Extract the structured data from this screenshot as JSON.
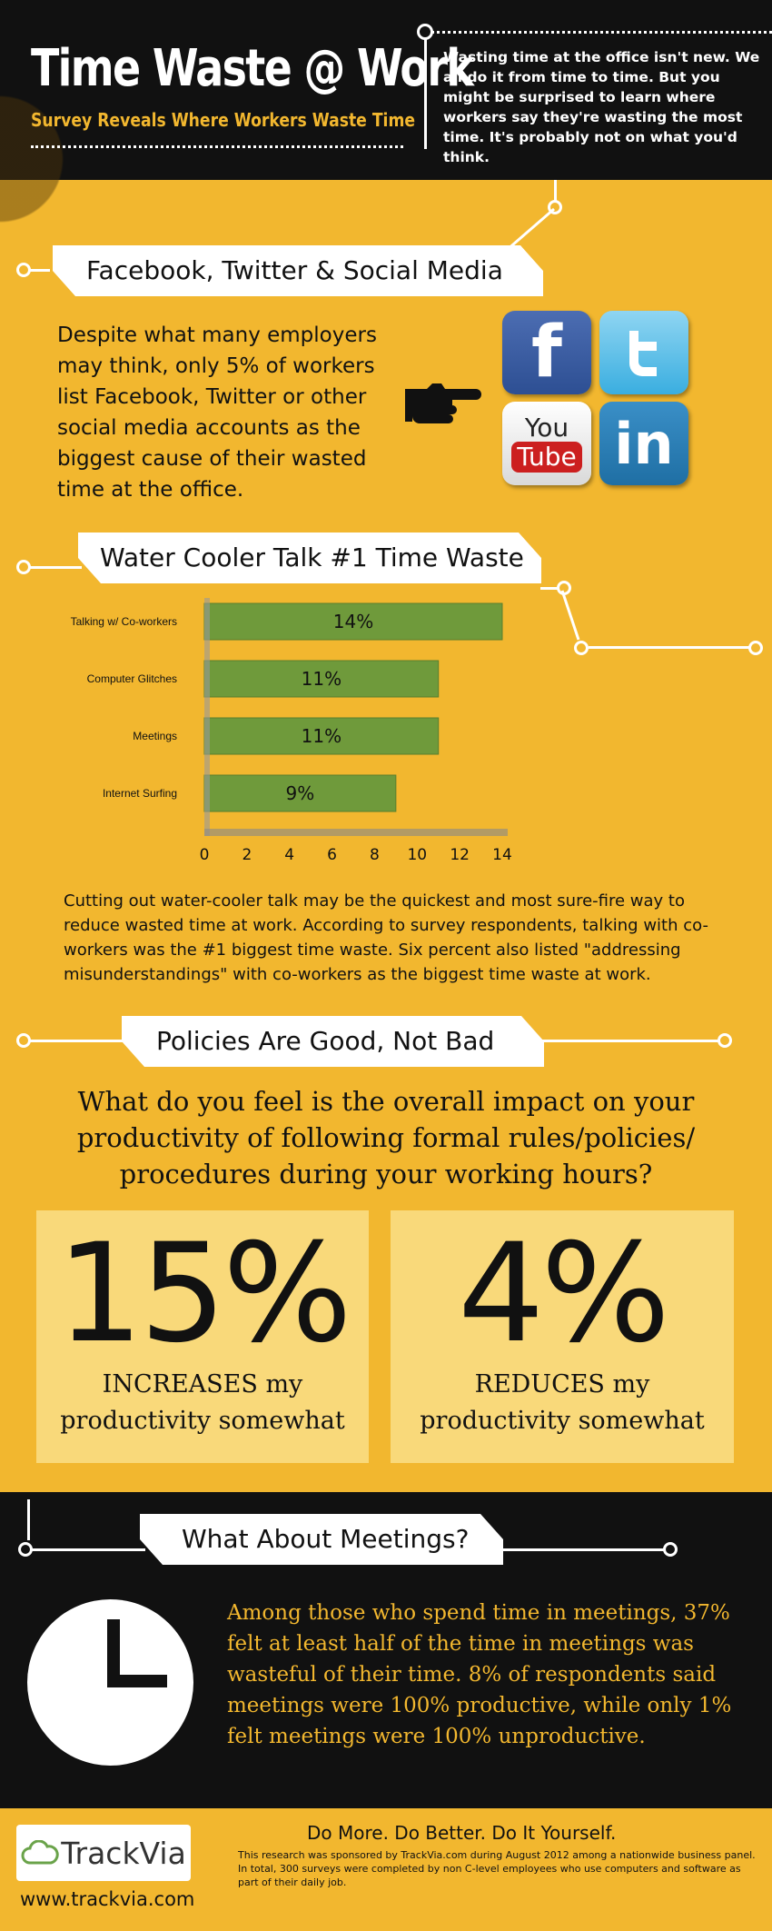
{
  "header": {
    "title": "Time Waste @ Work",
    "subtitle": "Survey Reveals Where Workers Waste Time",
    "intro": "Wasting time at the office isn't new. We all do it from time to time. But you might be surprised to learn where workers say they're wasting the most time. It's probably not on what you'd think."
  },
  "social_section": {
    "heading": "Facebook, Twitter & Social Media",
    "text": "Despite what many employers may think, only 5% of workers list Facebook, Twitter or other social media accounts as the biggest cause of their wasted time at the office.",
    "icons": {
      "facebook": "f",
      "youtube_top": "You",
      "youtube_bottom": "Tube",
      "linkedin": "in"
    }
  },
  "water_cooler_section": {
    "heading": "Water Cooler Talk #1 Time Waste",
    "text": "Cutting out water-cooler talk may be the quickest and most sure-fire way to reduce wasted time at work. According to survey respondents, talking with co-workers was the #1 biggest time waste. Six percent also listed \"addressing misunderstandings\" with co-workers as the biggest time waste at work."
  },
  "chart_data": {
    "type": "bar",
    "orientation": "horizontal",
    "categories": [
      "Talking w/ Co-workers",
      "Computer Glitches",
      "Meetings",
      "Internet Surfing"
    ],
    "values": [
      14,
      11,
      11,
      9
    ],
    "data_labels": [
      "14%",
      "11%",
      "11%",
      "9%"
    ],
    "xticks": [
      "0",
      "2",
      "4",
      "6",
      "8",
      "10",
      "12",
      "14"
    ],
    "xlim": [
      0,
      14
    ],
    "grid": false,
    "bar_color": "#6f9a3b"
  },
  "policies_section": {
    "heading": "Policies Are Good, Not Bad",
    "question": "What do you feel is the overall impact on your productivity of following formal rules/policies/ procedures during your working hours?",
    "stats": [
      {
        "value": "15%",
        "line1": "INCREASES my",
        "line2": "productivity somewhat"
      },
      {
        "value": "4%",
        "line1": "REDUCES my",
        "line2": "productivity somewhat"
      }
    ]
  },
  "meetings_section": {
    "heading": "What About Meetings?",
    "text": "Among those who spend time in meetings, 37% felt at least half of the time in meetings was wasteful of their time.  8% of respondents said meetings were 100% productive, while only 1% felt meetings were 100% unproductive."
  },
  "footer": {
    "logo": "TrackVia",
    "url": "www.trackvia.com",
    "tagline": "Do More. Do Better. Do It Yourself.",
    "note": "This research was sponsored by TrackVia.com during August 2012 among a nationwide business panel. In total, 300 surveys were completed by non C-level employees who use computers and software as part of their daily job."
  },
  "colors": {
    "background": "#f2b72f",
    "dark": "#111111",
    "stat_box": "#f9d97a",
    "meeting_text": "#f2b72f"
  }
}
